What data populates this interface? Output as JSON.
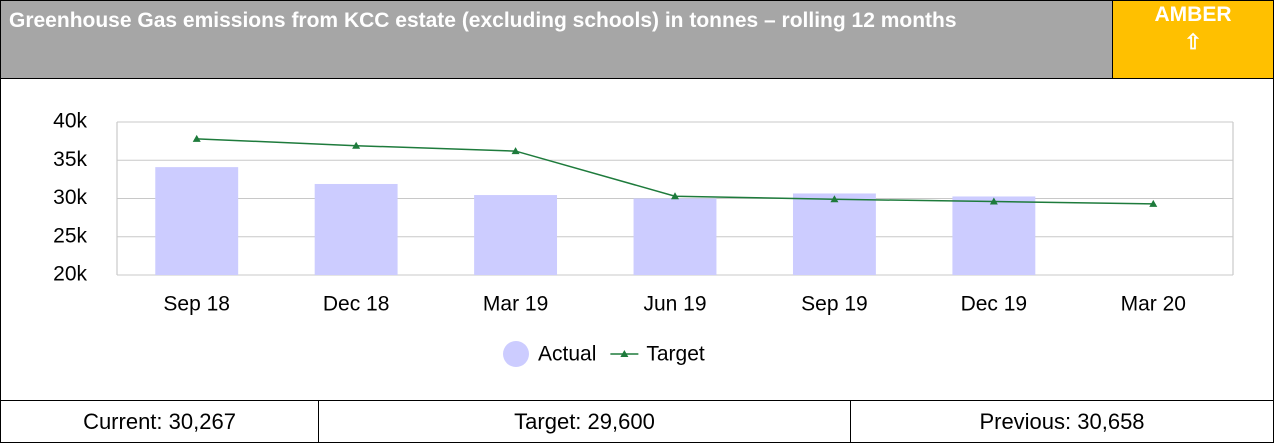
{
  "header": {
    "title": "Greenhouse Gas emissions from KCC estate (excluding schools) in tonnes – rolling 12 months",
    "status": "AMBER",
    "arrow": "⇧"
  },
  "chart_data": {
    "type": "bar_line",
    "categories": [
      "Sep 18",
      "Dec 18",
      "Mar 19",
      "Jun 19",
      "Sep 19",
      "Dec 19",
      "Mar 20"
    ],
    "series": [
      {
        "name": "Actual",
        "color": "#ccccff",
        "type": "bar",
        "values": [
          34100,
          31900,
          30450,
          30000,
          30658,
          30267,
          null
        ]
      },
      {
        "name": "Target",
        "color": "#1e7b3c",
        "type": "line",
        "values": [
          37800,
          36900,
          36200,
          30300,
          29900,
          29600,
          29300
        ]
      }
    ],
    "ylim": [
      20000,
      40000
    ],
    "yticks": [
      {
        "value": 20000,
        "label": "20k"
      },
      {
        "value": 25000,
        "label": "25k"
      },
      {
        "value": 30000,
        "label": "30k"
      },
      {
        "value": 35000,
        "label": "35k"
      },
      {
        "value": 40000,
        "label": "40k"
      }
    ],
    "grid": true,
    "legend": "bottom"
  },
  "footer": [
    "Current: 30,267",
    "Target: 29,600",
    "Previous: 30,658"
  ]
}
